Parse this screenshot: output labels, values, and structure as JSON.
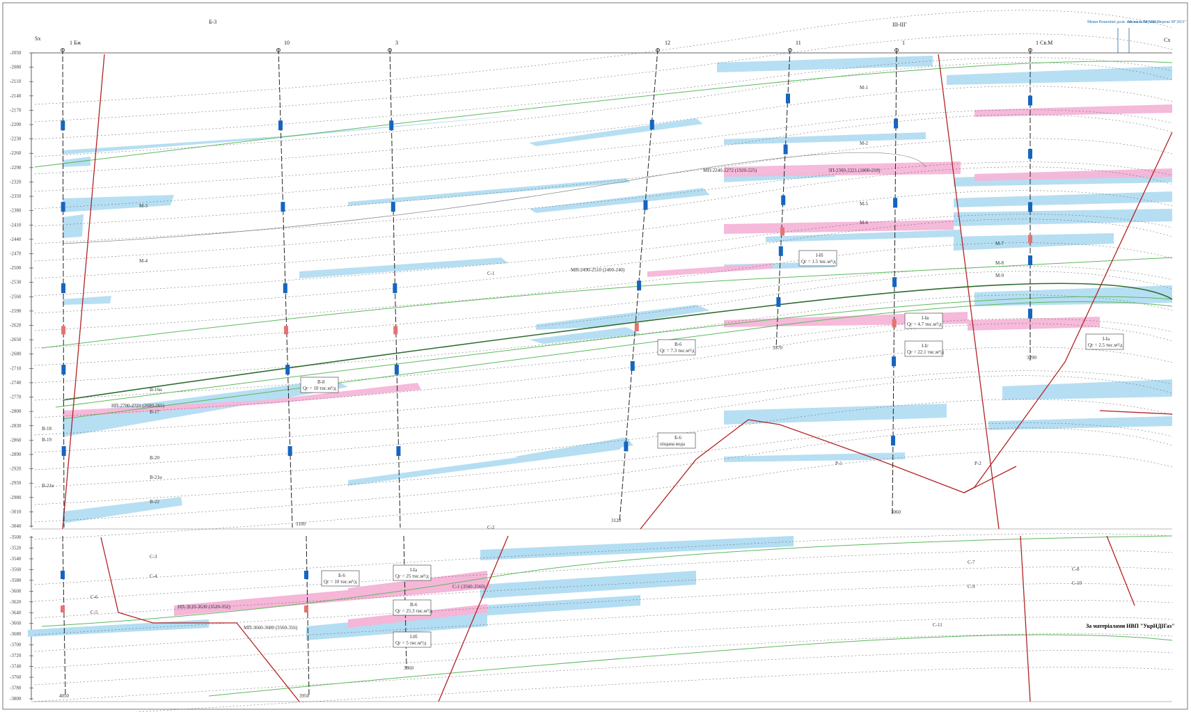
{
  "upper_depth_ticks": [
    "-2050",
    "-2080",
    "-2110",
    "-2140",
    "-2170",
    "-2200",
    "-2230",
    "-2260",
    "-2290",
    "-2320",
    "-2350",
    "-2380",
    "-2410",
    "-2440",
    "-2470",
    "-2500",
    "-2530",
    "-2560",
    "-2590",
    "-2620",
    "-2650",
    "-2680",
    "-2710",
    "-2740",
    "-2770",
    "-2800",
    "-2830",
    "-2860",
    "-2890",
    "-2920",
    "-2950",
    "-2980",
    "-3010",
    "-3040"
  ],
  "lower_depth_ticks": [
    "-3500",
    "-3520",
    "-3540",
    "-3560",
    "-3580",
    "-3600",
    "-3620",
    "-3640",
    "-3660",
    "-3680",
    "-3700",
    "-3720",
    "-3740",
    "-3760",
    "-3780",
    "-3800"
  ],
  "wells": [
    {
      "name": "1 Бж"
    },
    {
      "name": "10"
    },
    {
      "name": "3"
    },
    {
      "name": "12"
    },
    {
      "name": "11"
    },
    {
      "name": "1"
    },
    {
      "name": "1 Св.М"
    }
  ],
  "top_markers": {
    "left_mark": "Sx",
    "wells_note": "Б-3",
    "well_pair": "III-IIГ",
    "right_mark": "Сх"
  },
  "legend": {
    "item1": "Межи Вошовіні дозв. газ. кв.м. М \"2011\"",
    "item2": "Межи нові розв. мережі М\"2011\""
  },
  "depth_labels": [
    "3120",
    "3370",
    "3060",
    "3290",
    "3100",
    "3860",
    "3950",
    "4050"
  ],
  "horizon_labels": [
    "М-1",
    "М-2",
    "М-3",
    "М-4",
    "М-5",
    "М-6",
    "М-7",
    "М-8",
    "М-9",
    "В-16н",
    "В-17",
    "В-18",
    "В-19",
    "В-20",
    "В-21н",
    "В-21в",
    "В-22",
    "С-1",
    "С-2",
    "С-3",
    "С-4",
    "С-5",
    "С-6",
    "С-7",
    "С-8",
    "С-9",
    "С-10",
    "С-11",
    "Р-1",
    "Р-2"
  ],
  "pink_labels": [
    "МП-2240-2272 (1920-225)",
    "ЗП-2300-2321 (1800-210)",
    "МП-2490-2510 (2400-240)",
    "НП-2700-2721 (2600-265)",
    "НП-3610-3630 (3520-352)",
    "МП-3660-3680 (3560-356)",
    "С-1 (3560-3560)"
  ],
  "boxes": [
    {
      "t1": "І-Iб",
      "t2": "Qг = 1.5 тис.м³/д"
    },
    {
      "t1": "В-6",
      "t2": "Qг = 7.3 тис.м³/д"
    },
    {
      "t1": "В-8",
      "t2": "Qг = 10 тис.м³/д"
    },
    {
      "t1": "І-Iв",
      "t2": "Qг = 4.7 тис.м³/д"
    },
    {
      "t1": "І-Iг",
      "t2": "Qг = 22.1 тис.м³/д"
    },
    {
      "t1": "І-Iа",
      "t2": "Qг = 2.5 тис.м³/д"
    },
    {
      "t1": "Б-6",
      "t2": "піщана вода"
    },
    {
      "t1": "Б-6",
      "t2": "Qг = 10 тис.м³/д"
    },
    {
      "t1": "І-Iа",
      "t2": "Qг = 25 тис.м³/д"
    },
    {
      "t1": "В-6",
      "t2": "Qг = 25.3 тис.м³/д"
    },
    {
      "t1": "І-Iб",
      "t2": "Qг = 5 тис.м³/д"
    }
  ],
  "credit": "За матеріалами НВП \"УкрНДІГаз\"",
  "colors": {
    "gas_layer": "#b3ddf2",
    "oil_layer": "#f5b6d8",
    "fault": "#b22222",
    "horizon": "#5cb85c",
    "well_blue": "#1565c0",
    "well_red": "#e57373"
  }
}
